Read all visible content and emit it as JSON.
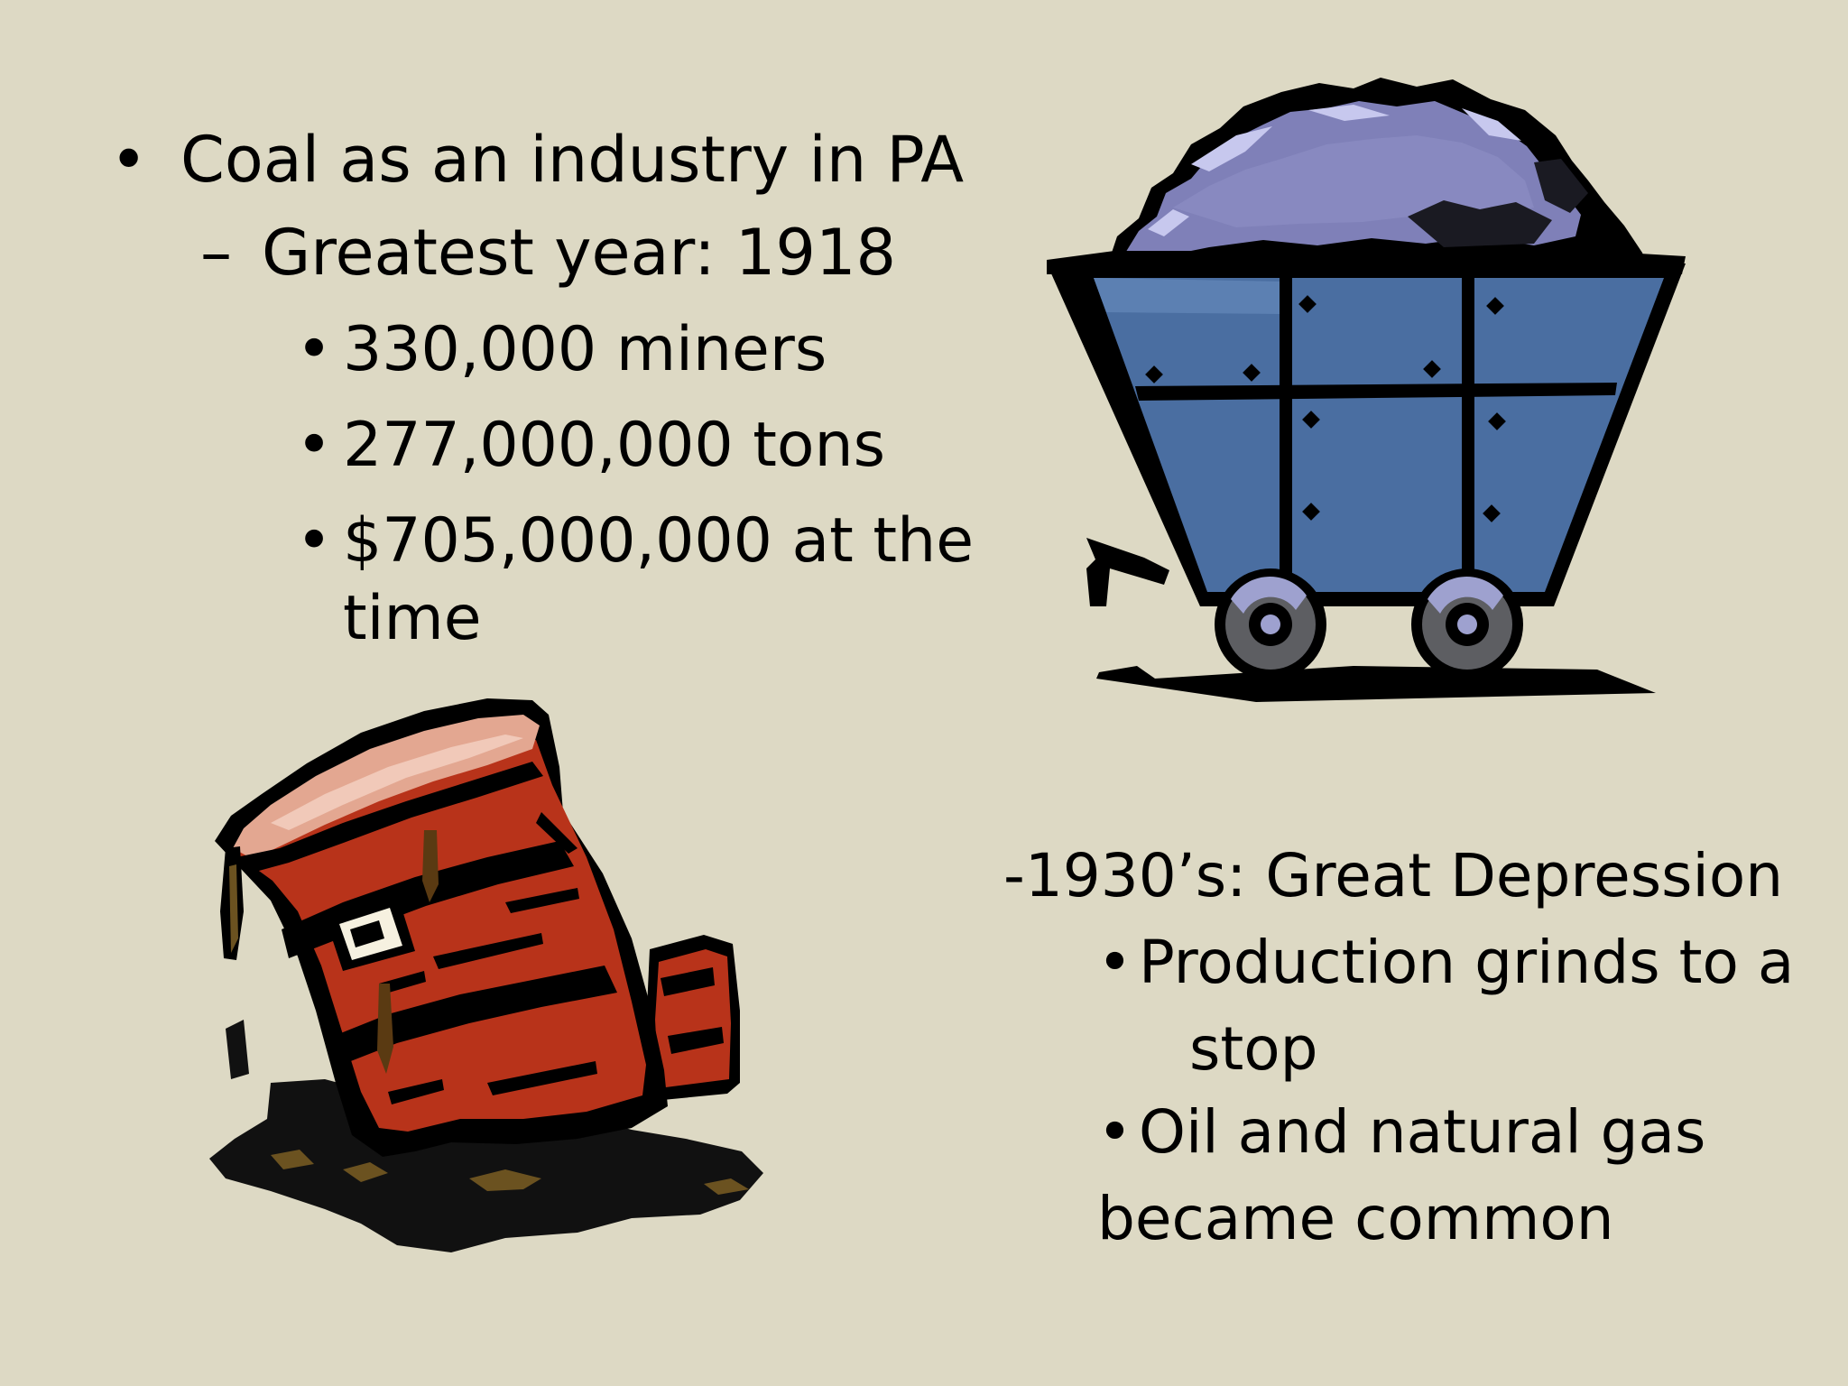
{
  "slide": {
    "left_block": {
      "heading": "Coal as an industry in PA",
      "subheading": "Greatest year: 1918",
      "items": [
        "330,000 miners",
        "277,000,000 tons",
        "$705,000,000 at the",
        "time"
      ]
    },
    "right_block": {
      "heading": "-1930’s: Great Depression",
      "item1_line1": "Production grinds to a",
      "item1_line2": "stop",
      "item2_line1": "Oil and natural gas",
      "item2_line2": "became common"
    },
    "bullet_char": "•",
    "dash_char": "–"
  },
  "images": {
    "coal_cart": "coal-cart-icon",
    "oil_barrel": "spilled-oil-barrel-icon"
  },
  "colors": {
    "background": "#ddd9c4",
    "cart_body": "#4a6ea1",
    "coal": "#7f80b8",
    "barrel": "#b8331a"
  }
}
